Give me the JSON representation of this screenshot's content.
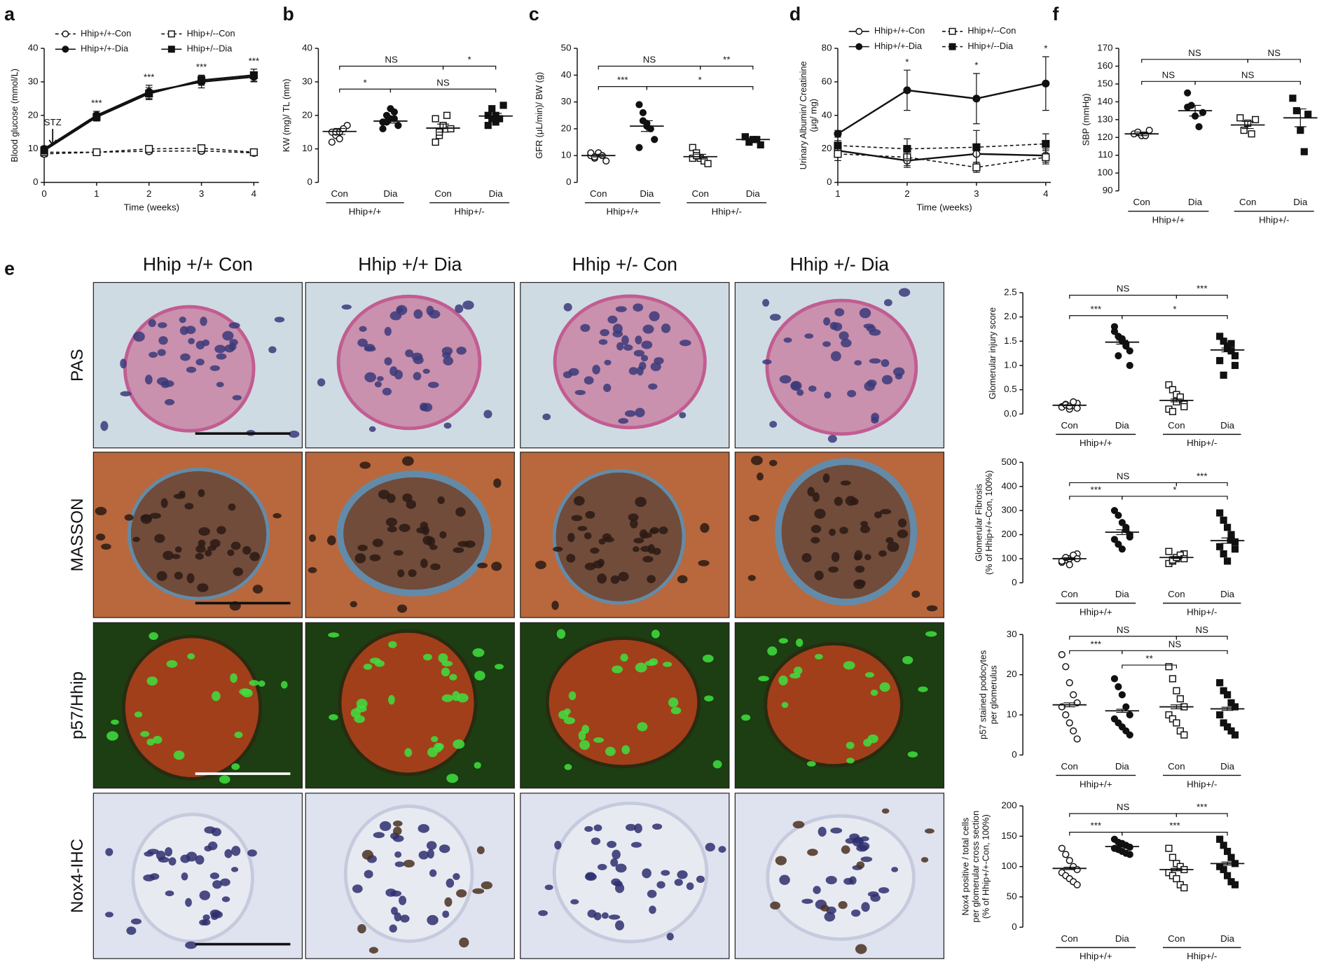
{
  "chart_data": [
    {
      "type": "line",
      "label": "a",
      "ylabel": [
        "Blood glucose (mmol/L)"
      ],
      "xlabel": "Time (weeks)",
      "x": [
        0,
        1,
        2,
        3,
        4
      ],
      "xlim": [
        0,
        4
      ],
      "xticks": [
        0,
        1,
        2,
        3,
        4
      ],
      "ylim": [
        0,
        40
      ],
      "yticks": [
        0,
        10,
        20,
        30,
        40
      ],
      "annotation": "STZ",
      "point_labels": [
        null,
        "***",
        "***",
        "***",
        "***"
      ],
      "color": "#111111",
      "series": [
        {
          "name": "Hhip+/+-Con",
          "marker": "open-circle",
          "line_style": "dashed",
          "values": [
            8.5,
            9,
            9.3,
            9.4,
            8.8
          ],
          "errors": [
            0.8,
            0.6,
            0.7,
            0.7,
            0.6
          ]
        },
        {
          "name": "Hhip+/+-Dia",
          "marker": "filled-circle",
          "line_style": "solid",
          "values": [
            10,
            20,
            27,
            30,
            31.5
          ],
          "errors": [
            0.8,
            1.2,
            2,
            1.8,
            1.5
          ]
        },
        {
          "name": "Hhip+/--Con",
          "marker": "open-square",
          "line_style": "dashed",
          "values": [
            9,
            9,
            10,
            10.2,
            9
          ],
          "errors": [
            0.7,
            0.6,
            0.6,
            0.8,
            0.6
          ]
        },
        {
          "name": "Hhip+/--Dia",
          "marker": "filled-square",
          "line_style": "solid",
          "values": [
            9.5,
            19.5,
            26.5,
            30.5,
            32
          ],
          "errors": [
            0.8,
            1.2,
            1.8,
            1.5,
            1.8
          ]
        }
      ]
    },
    {
      "type": "dot",
      "label": "b",
      "ylabel": [
        "KW (mg)/ TL (mm)"
      ],
      "categories": [
        "Con",
        "Dia",
        "Con",
        "Dia"
      ],
      "group_labels": [
        "Hhip+/+",
        "Hhip+/-"
      ],
      "markers": [
        "open-circle",
        "filled-circle",
        "open-square",
        "filled-square"
      ],
      "ylim": [
        0,
        40
      ],
      "yticks": [
        0,
        10,
        20,
        30,
        40
      ],
      "significance": [
        "NS",
        "*",
        "*",
        "NS"
      ],
      "color": "#111111",
      "points": [
        [
          15,
          14,
          13,
          16,
          17,
          12,
          15,
          15,
          16
        ],
        [
          18,
          20,
          22,
          19,
          17,
          16,
          18,
          19,
          21,
          17,
          18
        ],
        [
          12,
          14,
          17,
          20,
          16,
          19,
          15,
          17
        ],
        [
          20,
          22,
          18,
          19,
          23,
          17,
          19,
          20
        ]
      ],
      "means": [
        15.2,
        18.3,
        16.2,
        19.8
      ],
      "sems": [
        0.9,
        0.6,
        1.2,
        0.8
      ]
    },
    {
      "type": "dot",
      "label": "c",
      "ylabel": [
        "GFR (μL/min)/ BW (g)"
      ],
      "categories": [
        "Con",
        "Dia",
        "Con",
        "Dia"
      ],
      "group_labels": [
        "Hhip+/+",
        "Hhip+/-"
      ],
      "markers": [
        "open-circle",
        "filled-circle",
        "open-square",
        "filled-square"
      ],
      "ylim": [
        0,
        50
      ],
      "yticks": [
        0,
        10,
        20,
        30,
        40,
        50
      ],
      "significance": [
        "NS",
        "**",
        "***",
        "*"
      ],
      "color": "#111111",
      "points": [
        [
          10,
          9,
          11,
          10,
          8,
          11,
          9.5
        ],
        [
          29,
          26,
          22,
          20,
          16,
          13,
          23,
          21
        ],
        [
          13,
          11,
          9,
          8,
          7,
          9,
          10
        ],
        [
          17,
          15,
          16,
          16,
          14,
          17
        ]
      ],
      "means": [
        10,
        21,
        9.6,
        16
      ],
      "sems": [
        0.5,
        2,
        0.9,
        0.5
      ]
    },
    {
      "type": "line",
      "label": "d",
      "ylabel": [
        "Urinary Albumin/ Creatinine",
        "(μg/ mg)"
      ],
      "xlabel": "Time (weeks)",
      "x": [
        1,
        2,
        3,
        4
      ],
      "xlim": [
        1,
        4
      ],
      "xticks": [
        1,
        2,
        3,
        4
      ],
      "ylim": [
        0,
        80
      ],
      "yticks": [
        0,
        20,
        40,
        60,
        80
      ],
      "point_labels": [
        null,
        "*",
        "*",
        "*"
      ],
      "color": "#111111",
      "series": [
        {
          "name": "Hhip+/+-Con",
          "marker": "open-circle",
          "line_style": "solid",
          "values": [
            19,
            13,
            17,
            16
          ],
          "errors": [
            4,
            4,
            5,
            4
          ]
        },
        {
          "name": "Hhip+/+-Dia",
          "marker": "filled-circle",
          "line_style": "solid",
          "values": [
            29,
            55,
            50,
            59
          ],
          "errors": [
            2,
            12,
            15,
            16
          ]
        },
        {
          "name": "Hhip+/--Con",
          "marker": "open-square",
          "line_style": "dashed",
          "values": [
            17,
            15,
            9,
            15
          ],
          "errors": [
            4,
            5,
            3,
            4
          ]
        },
        {
          "name": "Hhip+/--Dia",
          "marker": "filled-square",
          "line_style": "dashed",
          "values": [
            22,
            20,
            21,
            23
          ],
          "errors": [
            3,
            6,
            10,
            6
          ]
        }
      ]
    },
    {
      "type": "dot",
      "label": "f",
      "ylabel": [
        "SBP (mmHg)"
      ],
      "categories": [
        "Con",
        "Dia",
        "Con",
        "Dia"
      ],
      "group_labels": [
        "Hhip+/+",
        "Hhip+/-"
      ],
      "markers": [
        "open-circle",
        "filled-circle",
        "open-square",
        "filled-square"
      ],
      "ylim": [
        90,
        170
      ],
      "yticks": [
        90,
        100,
        110,
        120,
        130,
        140,
        150,
        160,
        170
      ],
      "significance": [
        "NS",
        "NS",
        "NS",
        "NS"
      ],
      "color": "#111111",
      "points": [
        [
          122,
          123,
          121,
          121,
          124
        ],
        [
          145,
          138,
          132,
          126,
          134,
          137
        ],
        [
          131,
          124,
          128,
          122,
          130
        ],
        [
          142,
          135,
          124,
          112,
          133
        ]
      ],
      "means": [
        122,
        135,
        127,
        131
      ],
      "sems": [
        1,
        3,
        2,
        5
      ]
    },
    {
      "type": "dot",
      "ylabel": [
        "Glomerular injury score"
      ],
      "categories": [
        "Con",
        "Dia",
        "Con",
        "Dia"
      ],
      "group_labels": [
        "Hhip+/+",
        "Hhip+/-"
      ],
      "markers": [
        "open-circle",
        "filled-circle",
        "open-square",
        "filled-square"
      ],
      "ylim": [
        0,
        2.5
      ],
      "yticks": [
        {
          "value": 0,
          "label": "0.0"
        },
        0.5,
        {
          "value": 1,
          "label": "1.0"
        },
        1.5,
        {
          "value": 2,
          "label": "2.0"
        },
        2.5
      ],
      "significance": [
        "NS",
        "***",
        "***",
        "*"
      ],
      "color": "#111111",
      "points": [
        [
          0.15,
          0.2,
          0.1,
          0.18,
          0.22,
          0.14,
          0.19,
          0.16,
          0.25,
          0.12
        ],
        [
          1.8,
          1.6,
          1.5,
          1.4,
          1.3,
          1.7,
          1.2,
          1.55,
          1.45,
          1.0
        ],
        [
          0.6,
          0.5,
          0.4,
          0.3,
          0.2,
          0.1,
          0.05,
          0.25,
          0.35,
          0.15
        ],
        [
          1.6,
          1.5,
          1.4,
          1.3,
          1.2,
          1.1,
          0.8,
          1.35,
          1.45,
          1.0
        ]
      ],
      "means": [
        0.18,
        1.48,
        0.28,
        1.32
      ],
      "sems": [
        0.01,
        0.04,
        0.03,
        0.04
      ]
    },
    {
      "type": "dot",
      "ylabel": [
        "Glomerular Fibrosis",
        "(% of Hhip+/+-Con, 100%)"
      ],
      "categories": [
        "Con",
        "Dia",
        "Con",
        "Dia"
      ],
      "group_labels": [
        "Hhip+/+",
        "Hhip+/-"
      ],
      "markers": [
        "open-circle",
        "filled-circle",
        "open-square",
        "filled-square"
      ],
      "ylim": [
        0,
        500
      ],
      "yticks": [
        0,
        100,
        200,
        300,
        400,
        500
      ],
      "significance": [
        "NS",
        "***",
        "***",
        "*"
      ],
      "color": "#111111",
      "points": [
        [
          85,
          95,
          100,
          110,
          120,
          90,
          105,
          75,
          115,
          100
        ],
        [
          300,
          280,
          250,
          220,
          200,
          180,
          160,
          140,
          230,
          190
        ],
        [
          80,
          90,
          100,
          110,
          120,
          130,
          95,
          105,
          115,
          100
        ],
        [
          290,
          260,
          230,
          200,
          170,
          150,
          120,
          90,
          180,
          140
        ]
      ],
      "means": [
        100,
        210,
        105,
        175
      ],
      "sems": [
        4,
        10,
        4,
        11
      ]
    },
    {
      "type": "dot",
      "ylabel": [
        "p57 stained podocytes",
        "per glomerulus"
      ],
      "categories": [
        "Con",
        "Dia",
        "Con",
        "Dia"
      ],
      "group_labels": [
        "Hhip+/+",
        "Hhip+/-"
      ],
      "markers": [
        "open-circle",
        "filled-circle",
        "open-square",
        "filled-square"
      ],
      "ylim": [
        0,
        30
      ],
      "yticks": [
        0,
        10,
        20,
        30
      ],
      "significance": [
        "NS",
        "NS",
        "***",
        "NS",
        "**"
      ],
      "color": "#111111",
      "points": [
        [
          25,
          22,
          18,
          15,
          13,
          12,
          10,
          8,
          6,
          4
        ],
        [
          19,
          17,
          15,
          12,
          10,
          9,
          8,
          7,
          6,
          5
        ],
        [
          22,
          19,
          16,
          14,
          12,
          10,
          9,
          8,
          6,
          5
        ],
        [
          18,
          16,
          15,
          13,
          12,
          10,
          8,
          7,
          6,
          5
        ]
      ],
      "means": [
        12.5,
        11,
        12,
        11.5
      ],
      "sems": [
        0.5,
        0.4,
        0.5,
        0.4
      ]
    },
    {
      "type": "dot",
      "ylabel": [
        "Nox4 positive / total cells",
        "per glomerular cross section",
        "(% of Hhip+/+-Con, 100%)"
      ],
      "categories": [
        "Con",
        "Dia",
        "Con",
        "Dia"
      ],
      "group_labels": [
        "Hhip+/+",
        "Hhip+/-"
      ],
      "markers": [
        "open-circle",
        "filled-circle",
        "open-square",
        "filled-square"
      ],
      "ylim": [
        0,
        200
      ],
      "yticks": [
        0,
        50,
        100,
        150,
        200
      ],
      "significance": [
        "NS",
        "***",
        "***",
        "***"
      ],
      "color": "#111111",
      "points": [
        [
          130,
          120,
          110,
          100,
          95,
          90,
          85,
          80,
          75,
          70
        ],
        [
          145,
          140,
          138,
          135,
          132,
          130,
          128,
          125,
          122,
          120
        ],
        [
          130,
          115,
          105,
          100,
          95,
          90,
          85,
          80,
          70,
          65
        ],
        [
          145,
          135,
          125,
          115,
          105,
          100,
          95,
          85,
          75,
          70
        ]
      ],
      "means": [
        97,
        133,
        95,
        105
      ],
      "sems": [
        2,
        1,
        2,
        2.5
      ]
    }
  ],
  "figure_e": {
    "label": "e",
    "columns": [
      "Hhip +/+ Con",
      "Hhip +/+ Dia",
      "Hhip +/- Con",
      "Hhip +/- Dia"
    ],
    "rows": [
      "PAS",
      "MASSON",
      "p57/Hhip",
      "Nox4-IHC"
    ]
  }
}
